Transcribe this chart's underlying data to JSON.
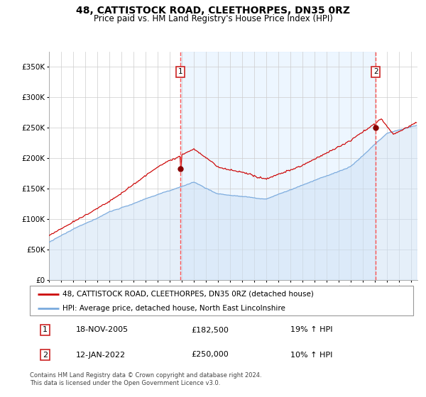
{
  "title": "48, CATTISTOCK ROAD, CLEETHORPES, DN35 0RZ",
  "subtitle": "Price paid vs. HM Land Registry's House Price Index (HPI)",
  "ylabel_ticks": [
    "£0",
    "£50K",
    "£100K",
    "£150K",
    "£200K",
    "£250K",
    "£300K",
    "£350K"
  ],
  "ytick_values": [
    0,
    50000,
    100000,
    150000,
    200000,
    250000,
    300000,
    350000
  ],
  "ylim": [
    0,
    375000
  ],
  "xlim_start": 1995.0,
  "xlim_end": 2025.5,
  "sale1_date": 2005.88,
  "sale1_price": 182500,
  "sale2_date": 2022.04,
  "sale2_price": 250000,
  "legend_line1": "48, CATTISTOCK ROAD, CLEETHORPES, DN35 0RZ (detached house)",
  "legend_line2": "HPI: Average price, detached house, North East Lincolnshire",
  "table_row1": [
    "1",
    "18-NOV-2005",
    "£182,500",
    "19% ↑ HPI"
  ],
  "table_row2": [
    "2",
    "12-JAN-2022",
    "£250,000",
    "10% ↑ HPI"
  ],
  "footer": "Contains HM Land Registry data © Crown copyright and database right 2024.\nThis data is licensed under the Open Government Licence v3.0.",
  "line_color_red": "#cc0000",
  "line_color_blue": "#7aaadd",
  "fill_color_blue": "#cce0f5",
  "grid_color": "#cccccc",
  "vline_color": "#ff5555",
  "sale_marker_color": "#880000",
  "box_edge_color": "#cc2222",
  "span_color": "#ddeeff",
  "title_fontsize": 10,
  "subtitle_fontsize": 8.5
}
